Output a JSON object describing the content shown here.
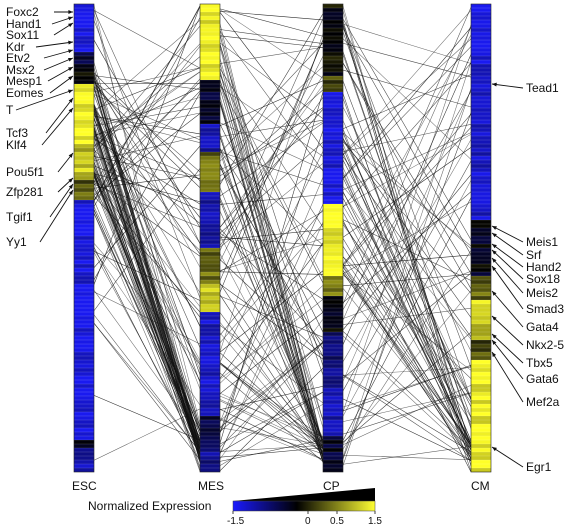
{
  "columns": [
    {
      "name": "ESC"
    },
    {
      "name": "MES"
    },
    {
      "name": "CP"
    },
    {
      "name": "CM"
    }
  ],
  "left_genes": [
    "Foxc2",
    "Hand1",
    "Sox11",
    "Kdr",
    "Etv2",
    "Msx2",
    "Mesp1",
    "Eomes",
    "T",
    "Tcf3",
    "Klf4",
    "Pou5f1",
    "Zfp281",
    "Tgif1",
    "Yy1"
  ],
  "right_genes": [
    "Tead1",
    "Meis1",
    "Srf",
    "Hand2",
    "Sox18",
    "Meis2",
    "Smad3",
    "Gata4",
    "Nkx2-5",
    "Tbx5",
    "Gata6",
    "Mef2a",
    "Egr1"
  ],
  "legend": {
    "title": "Normalized Expression",
    "ticks": [
      "-1.5",
      "0",
      "0.5",
      "1.5"
    ],
    "colors": {
      "low": "#1a1aff",
      "mid": "#000000",
      "high": "#ffff33"
    }
  }
}
